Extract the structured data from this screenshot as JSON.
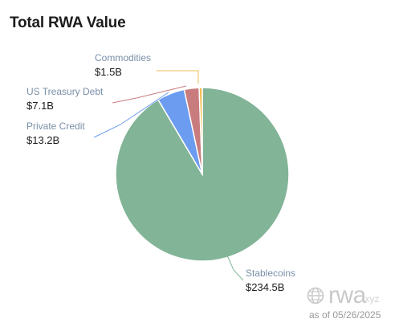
{
  "chart_data": {
    "type": "pie",
    "title": "Total RWA Value",
    "slices": [
      {
        "label": "Stablecoins",
        "value_label": "$234.5B",
        "value": 234.5,
        "color": "#82b497"
      },
      {
        "label": "Private Credit",
        "value_label": "$13.2B",
        "value": 13.2,
        "color": "#6c9cf0"
      },
      {
        "label": "US Treasury Debt",
        "value_label": "$7.1B",
        "value": 7.1,
        "color": "#c97c7e"
      },
      {
        "label": "Commodities",
        "value_label": "$1.5B",
        "value": 1.5,
        "color": "#f2bd4f"
      }
    ]
  },
  "watermark": {
    "brand": "rwa",
    "tld": ".xyz",
    "as_of": "as of 05/26/2025"
  }
}
